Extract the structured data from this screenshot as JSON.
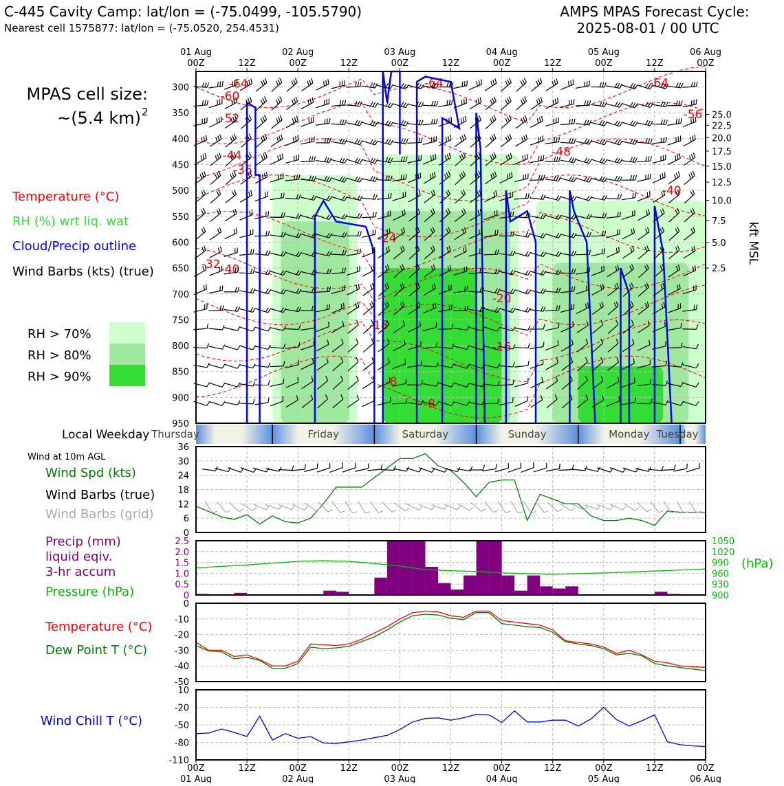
{
  "header": {
    "title_left": "C-445 Cavity Camp: lat/lon = (-75.0499, -105.5790)",
    "subtitle_left": "Nearest cell 1575877: lat/lon = (-75.0520, 254.4531)",
    "title_right_1": "AMPS MPAS Forecast Cycle:",
    "title_right_2": "2025-08-01 / 00 UTC"
  },
  "left_panel": {
    "cell_size_1": "MPAS cell size:",
    "cell_size_2": "~(5.4 km)",
    "cell_size_sup": "2",
    "legend_temp": "Temperature (°C)",
    "legend_rh": "RH (%) wrt liq. wat",
    "legend_cloud": "Cloud/Precip outline",
    "legend_wind": "Wind Barbs (kts) (true)",
    "rh_70": "RH > 70%",
    "rh_80": "RH > 80%",
    "rh_90": "RH > 90%",
    "weekday_label": "Local Weekday",
    "wind10_title": "Wind at 10m AGL",
    "wind_spd": "Wind Spd (kts)",
    "wind_true": "Wind Barbs (true)",
    "wind_grid": "Wind Barbs (grid)",
    "precip_1": "Precip (mm)",
    "precip_2": "liquid eqiv.",
    "precip_3": "3-hr accum",
    "pressure": "Pressure (hPa)",
    "temp": "Temperature (°C)",
    "dewpt": "Dew Point T (°C)",
    "windchill": "Wind Chill T (°C)"
  },
  "colors": {
    "temp": "#ff0000",
    "rh_label": "#33dd33",
    "cloud": "#0000ff",
    "wind": "#000000",
    "rh70": "#ccffcc",
    "rh80": "#a0e8a0",
    "rh90": "#33dd33",
    "wind_spd": "#008000",
    "wind_grid": "#aaaaaa",
    "precip": "#800080",
    "pressure": "#00bb00",
    "dewpt": "#008000",
    "windchill": "#0000ee"
  },
  "time_axis": {
    "top_dates": [
      "01 Aug",
      "",
      "02 Aug",
      "",
      "03 Aug",
      "",
      "04 Aug",
      "",
      "05 Aug",
      "",
      "06 Aug"
    ],
    "top_hours": [
      "00Z",
      "12Z",
      "00Z",
      "12Z",
      "00Z",
      "12Z",
      "00Z",
      "12Z",
      "00Z",
      "12Z",
      "00Z"
    ],
    "bottom_hours": [
      "00Z",
      "12Z",
      "00Z",
      "12Z",
      "00Z",
      "12Z",
      "00Z",
      "12Z",
      "00Z",
      "12Z",
      "00Z"
    ],
    "bottom_dates": [
      "01 Aug",
      "",
      "02 Aug",
      "",
      "03 Aug",
      "",
      "04 Aug",
      "",
      "05 Aug",
      "",
      "06 Aug"
    ]
  },
  "weekdays": [
    "Thursday",
    "Friday",
    "Saturday",
    "Sunday",
    "Monday",
    "Tuesday"
  ],
  "chart_data": [
    {
      "id": "cross_section",
      "type": "heatmap",
      "xlim_hours": [
        0,
        120
      ],
      "ylim_hpa": [
        950,
        270
      ],
      "y_ticks_hpa": [
        300,
        350,
        400,
        450,
        500,
        550,
        600,
        650,
        700,
        750,
        800,
        850,
        900,
        950
      ],
      "y_ticks_kft": [
        "25.0",
        "22.5",
        "20.0",
        "17.5",
        "15.0",
        "12.5",
        "10.0",
        "7.5",
        "5.0",
        "2.5"
      ],
      "y_ticks_kft_hpa": [
        353,
        374,
        398,
        424,
        453,
        484,
        519,
        558,
        601,
        650
      ],
      "right_label": "kft MSL",
      "rh_blocks": [
        {
          "level": 70,
          "x0": 18,
          "x1": 38,
          "p0": 470,
          "p1": 950
        },
        {
          "level": 70,
          "x0": 44,
          "x1": 76,
          "p0": 430,
          "p1": 950
        },
        {
          "level": 70,
          "x0": 80,
          "x1": 120,
          "p0": 520,
          "p1": 950
        },
        {
          "level": 80,
          "x0": 20,
          "x1": 36,
          "p0": 560,
          "p1": 950
        },
        {
          "level": 80,
          "x0": 44,
          "x1": 74,
          "p0": 540,
          "p1": 950
        },
        {
          "level": 80,
          "x0": 84,
          "x1": 116,
          "p0": 640,
          "p1": 950
        },
        {
          "level": 90,
          "x0": 44,
          "x1": 66,
          "p0": 650,
          "p1": 950
        },
        {
          "level": 90,
          "x0": 66,
          "x1": 72,
          "p0": 730,
          "p1": 950
        },
        {
          "level": 90,
          "x0": 90,
          "x1": 110,
          "p0": 840,
          "p1": 950
        }
      ],
      "temp_contours": [
        {
          "label": "-64",
          "x": 10,
          "p": 301
        },
        {
          "label": "-60",
          "x": 8,
          "p": 325
        },
        {
          "label": "-52",
          "x": 8,
          "p": 368
        },
        {
          "label": "-44",
          "x": 8.5,
          "p": 440
        },
        {
          "label": "-36",
          "x": 11,
          "p": 468
        },
        {
          "label": "-32",
          "x": 3.5,
          "p": 650
        },
        {
          "label": "-40",
          "x": 8,
          "p": 660
        },
        {
          "label": "-24",
          "x": 45,
          "p": 600
        },
        {
          "label": "-20",
          "x": 72,
          "p": 716
        },
        {
          "label": "-16",
          "x": 72,
          "p": 810
        },
        {
          "label": "-18",
          "x": 43,
          "p": 768
        },
        {
          "label": "-8",
          "x": 46,
          "p": 877
        },
        {
          "label": "-8",
          "x": 55,
          "p": 920
        },
        {
          "label": "-48",
          "x": 86,
          "p": 433
        },
        {
          "label": "-40",
          "x": 112,
          "p": 508
        },
        {
          "label": "-64",
          "x": 109,
          "p": 300
        },
        {
          "label": "-56",
          "x": 117,
          "p": 360
        },
        {
          "label": "-64",
          "x": 56,
          "p": 300
        }
      ],
      "cloud_outlines": [
        [
          [
            12,
            950
          ],
          [
            12,
            330
          ],
          [
            14,
            340
          ],
          [
            14,
            470
          ],
          [
            15,
            470
          ],
          [
            15,
            950
          ]
        ],
        [
          [
            28,
            950
          ],
          [
            28,
            550
          ],
          [
            30,
            520
          ],
          [
            33,
            560
          ],
          [
            40,
            570
          ],
          [
            42,
            620
          ],
          [
            42,
            950
          ]
        ],
        [
          [
            44,
            950
          ],
          [
            44,
            270
          ],
          [
            45,
            330
          ],
          [
            46,
            270
          ],
          [
            48,
            270
          ],
          [
            48,
            430
          ]
        ],
        [
          [
            52,
            950
          ],
          [
            52,
            290
          ],
          [
            54,
            280
          ],
          [
            60,
            290
          ],
          [
            62,
            380
          ],
          [
            58,
            360
          ],
          [
            58,
            950
          ]
        ],
        [
          [
            66,
            950
          ],
          [
            66,
            350
          ],
          [
            67,
            420
          ],
          [
            68,
            950
          ]
        ],
        [
          [
            73,
            950
          ],
          [
            73,
            500
          ],
          [
            74,
            560
          ],
          [
            78,
            540
          ],
          [
            80,
            600
          ],
          [
            80,
            950
          ]
        ],
        [
          [
            88,
            950
          ],
          [
            88,
            500
          ],
          [
            89,
            540
          ],
          [
            92,
            600
          ],
          [
            94,
            950
          ]
        ],
        [
          [
            100,
            950
          ],
          [
            100,
            650
          ],
          [
            102,
            700
          ],
          [
            102,
            950
          ]
        ],
        [
          [
            108,
            950
          ],
          [
            108,
            530
          ],
          [
            110,
            620
          ],
          [
            112,
            950
          ]
        ]
      ]
    },
    {
      "id": "wind10m",
      "type": "line",
      "x_hours": [
        0,
        6,
        9,
        12,
        15,
        18,
        21,
        24,
        27,
        30,
        33,
        36,
        39,
        42,
        45,
        48,
        51,
        54,
        57,
        60,
        63,
        66,
        69,
        72,
        75,
        78,
        81,
        84,
        87,
        90,
        93,
        96,
        99,
        102,
        105,
        108,
        111,
        114,
        117,
        120
      ],
      "wind_speed_kts": [
        11,
        6.5,
        5.5,
        7.5,
        3.5,
        7,
        4.5,
        4,
        6,
        12,
        19,
        19,
        19,
        23,
        27,
        31,
        31,
        33,
        28,
        26,
        21,
        15,
        21,
        22,
        22,
        5,
        16,
        14,
        12,
        12,
        7,
        5,
        5,
        6,
        5,
        3,
        9,
        8.5,
        8.5,
        8.5
      ],
      "ylim": [
        0,
        36
      ],
      "y_ticks": [
        0,
        6,
        12,
        18,
        24,
        30,
        36
      ]
    },
    {
      "id": "precip_pressure",
      "type": "bar",
      "bin_start_hours": [
        0,
        3,
        6,
        9,
        12,
        15,
        18,
        21,
        24,
        27,
        30,
        33,
        36,
        39,
        42,
        45,
        48,
        51,
        54,
        57,
        60,
        63,
        66,
        69,
        72,
        75,
        78,
        81,
        84,
        87,
        90,
        93,
        96,
        99,
        102,
        105,
        108,
        111,
        114,
        117
      ],
      "precip_mm": [
        0.05,
        0,
        0,
        0.1,
        0,
        0,
        0,
        0,
        0,
        0,
        0.2,
        0.15,
        0,
        0,
        0.8,
        2.5,
        2.5,
        2.5,
        1.3,
        0.55,
        0.25,
        0.9,
        2.5,
        2.5,
        0.9,
        0.2,
        0.9,
        0.4,
        0.3,
        0.4,
        0,
        0,
        0,
        0,
        0,
        0,
        0.15,
        0.05,
        0,
        0
      ],
      "precip_ylim": [
        0,
        2.5
      ],
      "precip_ticks": [
        "0",
        "0.5",
        "1.0",
        "1.5",
        "2.0",
        "2.5"
      ],
      "pressure_x": [
        0,
        12,
        24,
        30,
        36,
        42,
        48,
        54,
        60,
        66,
        72,
        84,
        96,
        108,
        120
      ],
      "pressure_hpa": [
        975,
        983,
        993,
        995,
        993,
        987,
        980,
        970,
        967,
        965,
        961,
        957,
        961,
        966,
        972
      ],
      "pressure_ylim": [
        900,
        1050
      ],
      "pressure_ticks": [
        "900",
        "930",
        "960",
        "990",
        "1020",
        "1050"
      ],
      "pressure_unit": "(hPa)"
    },
    {
      "id": "temp_dewpt",
      "type": "line",
      "x_hours": [
        0,
        3,
        6,
        9,
        12,
        15,
        18,
        21,
        24,
        27,
        30,
        33,
        36,
        39,
        42,
        45,
        48,
        51,
        54,
        57,
        60,
        63,
        66,
        69,
        72,
        75,
        78,
        81,
        84,
        87,
        90,
        93,
        96,
        99,
        102,
        105,
        108,
        111,
        114,
        117,
        120
      ],
      "temperature_c": [
        -25,
        -30,
        -30,
        -34,
        -33,
        -36,
        -40,
        -40,
        -37,
        -26,
        -26.5,
        -27,
        -26,
        -23,
        -19,
        -15,
        -10,
        -6,
        -5,
        -5.5,
        -8,
        -9,
        -5,
        -5,
        -11,
        -12,
        -13,
        -14,
        -17,
        -24,
        -25,
        -26,
        -28,
        -32,
        -30,
        -33,
        -37,
        -38,
        -40,
        -40.5,
        -41
      ],
      "dewpoint_c": [
        -27,
        -30.5,
        -31,
        -35.5,
        -34.5,
        -36.5,
        -41.5,
        -41.5,
        -38.5,
        -28,
        -29,
        -28.5,
        -27.5,
        -24.5,
        -21.5,
        -17,
        -12,
        -8,
        -7,
        -7.5,
        -9.5,
        -10.5,
        -6,
        -6,
        -13,
        -14,
        -15,
        -15.5,
        -18.5,
        -24.5,
        -26,
        -27,
        -29,
        -33,
        -32,
        -33.5,
        -38.5,
        -40,
        -41,
        -42,
        -43
      ],
      "ylim": [
        -50,
        0
      ],
      "y_ticks": [
        0,
        -10,
        -20,
        -30,
        -40,
        -50
      ]
    },
    {
      "id": "windchill",
      "type": "line",
      "x_hours": [
        0,
        3,
        6,
        9,
        12,
        15,
        18,
        21,
        24,
        27,
        30,
        33,
        36,
        39,
        42,
        45,
        48,
        51,
        54,
        57,
        60,
        63,
        66,
        69,
        72,
        75,
        78,
        81,
        84,
        87,
        90,
        93,
        96,
        99,
        102,
        105,
        108,
        111,
        114,
        117,
        120
      ],
      "windchill_c": [
        -65,
        -64,
        -57,
        -63,
        -70,
        -35,
        -76,
        -65,
        -73,
        -70,
        -81,
        -82,
        -79,
        -76,
        -72,
        -68,
        -58,
        -45,
        -39,
        -38,
        -42,
        -38,
        -32,
        -33,
        -46,
        -26,
        -45,
        -45,
        -42,
        -42,
        -52,
        -40,
        -20,
        -41,
        -52,
        -43,
        -33,
        -79,
        -84,
        -86,
        -87
      ],
      "ylim": [
        -110,
        10
      ],
      "y_ticks": [
        "10",
        "-20",
        "-50",
        "-80",
        "-110"
      ],
      "y_tick_values": [
        10,
        -20,
        -50,
        -80,
        -110
      ]
    }
  ]
}
